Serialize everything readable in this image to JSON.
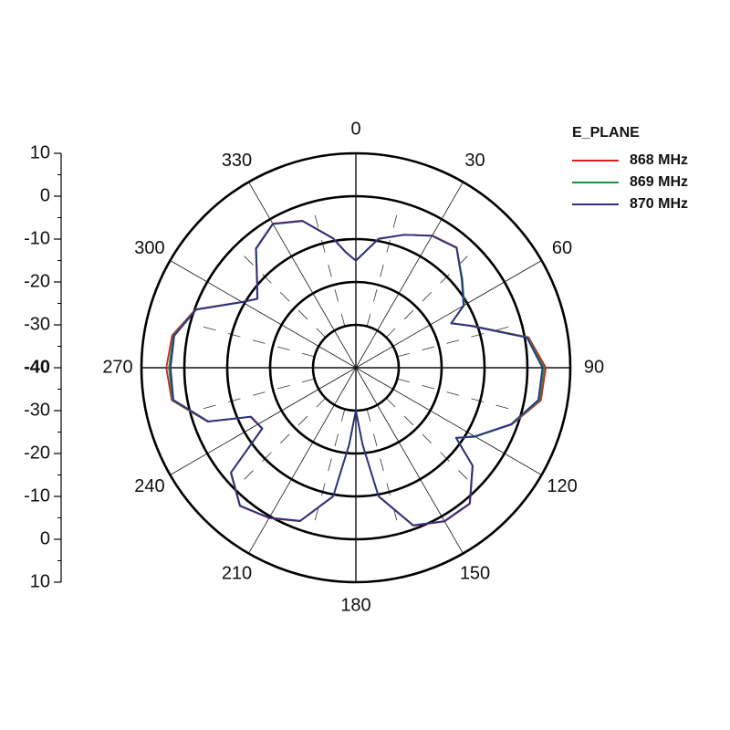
{
  "chart_data": {
    "type": "polar",
    "legend_title": "E_PLANE",
    "legend": "upper right",
    "rlim": [
      -40,
      10
    ],
    "rticks": [
      -40,
      -30,
      -20,
      -10,
      0,
      10
    ],
    "theta_ticks": [
      0,
      30,
      60,
      90,
      120,
      150,
      180,
      210,
      240,
      270,
      300,
      330
    ],
    "theta_direction": "clockwise",
    "theta_zero": "top",
    "x": [
      0,
      10,
      20,
      30,
      40,
      50,
      60,
      65,
      70,
      80,
      90,
      100,
      110,
      120,
      125,
      130,
      140,
      150,
      160,
      170,
      175,
      180,
      185,
      190,
      200,
      210,
      220,
      230,
      237,
      245,
      250,
      260,
      270,
      280,
      290,
      300,
      305,
      310,
      320,
      330,
      340,
      350,
      355
    ],
    "series": [
      {
        "name": "868 MHz",
        "color": "#d62020",
        "values": [
          -15,
          -9.4,
          -7,
          -4.4,
          -3.4,
          -7.7,
          -11,
          -15.4,
          -11.3,
          0.9,
          4.3,
          3.8,
          -1.3,
          -7.9,
          -11.4,
          -4.4,
          1.4,
          1.4,
          -0.8,
          -9.5,
          -22,
          -30,
          -22,
          -9.5,
          -1.9,
          0.5,
          2.1,
          -1.9,
          -13.9,
          -12.9,
          -3.2,
          3.6,
          4.2,
          3.5,
          -0.2,
          -9.3,
          -11.9,
          -9.9,
          -3.7,
          -1.2,
          -3.5,
          -9.3,
          -12.9
        ]
      },
      {
        "name": "869 MHz",
        "color": "#1a9040",
        "values": [
          -15.1,
          -9.5,
          -7,
          -4.5,
          -3.5,
          -7.6,
          -10.8,
          -15.5,
          -11.4,
          0.7,
          3.9,
          3.5,
          -1.4,
          -7.8,
          -11.5,
          -4.5,
          1.3,
          1.3,
          -0.9,
          -9.6,
          -22,
          -30,
          -22,
          -9.6,
          -2,
          0.4,
          2,
          -2,
          -14,
          -13,
          -3.3,
          3.4,
          3.6,
          3.2,
          -0.3,
          -9.4,
          -12,
          -10,
          -3.8,
          -1.3,
          -3.6,
          -9.4,
          -13
        ]
      },
      {
        "name": "870 MHz",
        "color": "#2b2f86",
        "values": [
          -15,
          -9.5,
          -7,
          -4.5,
          -3.5,
          -7.8,
          -11,
          -15.5,
          -11.5,
          0.5,
          3.5,
          3.2,
          -1.5,
          -8,
          -11.5,
          -4.5,
          1.3,
          1.3,
          -0.9,
          -9.6,
          -22,
          -30,
          -22,
          -9.6,
          -2,
          0.4,
          2,
          -2,
          -14,
          -13,
          -3.4,
          3.2,
          3.2,
          3,
          -0.4,
          -9.4,
          -12,
          -10,
          -3.8,
          -1.3,
          -3.6,
          -9.4,
          -13
        ]
      }
    ]
  }
}
